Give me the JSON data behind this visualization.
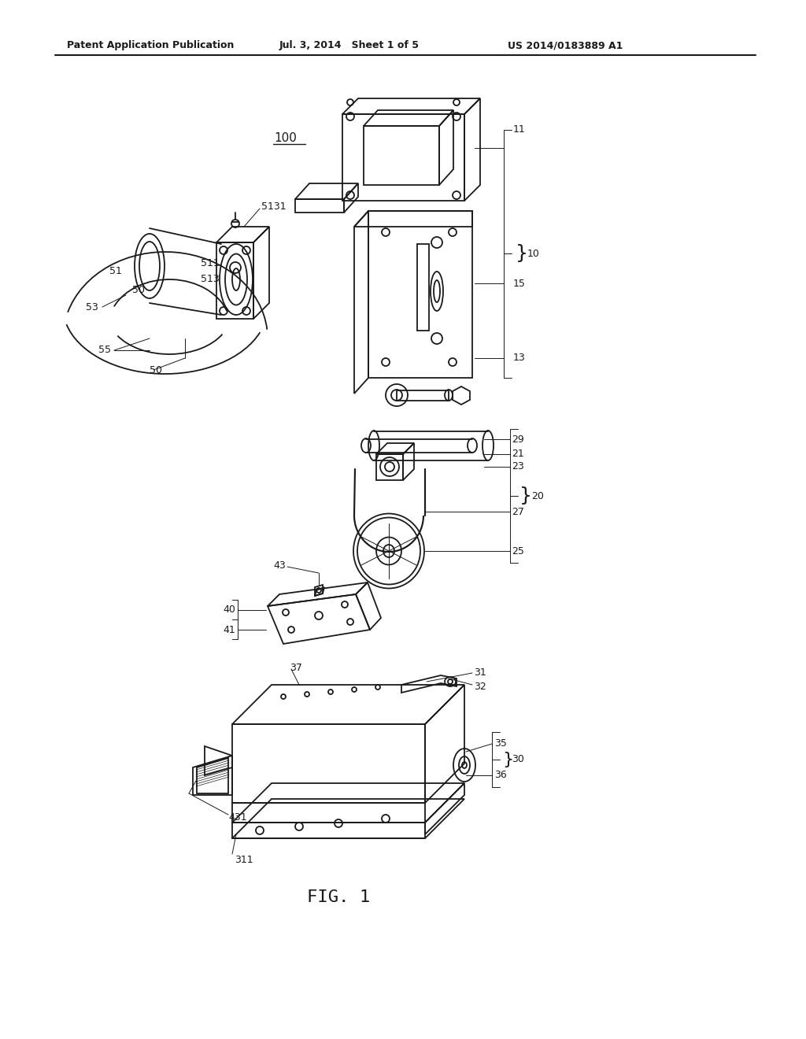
{
  "background_color": "#ffffff",
  "header_left": "Patent Application Publication",
  "header_center": "Jul. 3, 2014   Sheet 1 of 5",
  "header_right": "US 2014/0183889 A1",
  "figure_label": "FIG. 1",
  "line_color": "#1a1a1a",
  "lw": 1.3,
  "lw_thin": 0.7,
  "lw_thick": 1.8,
  "fs_header": 9,
  "fs_ref": 9,
  "fs_fig": 16,
  "fs_100": 11
}
